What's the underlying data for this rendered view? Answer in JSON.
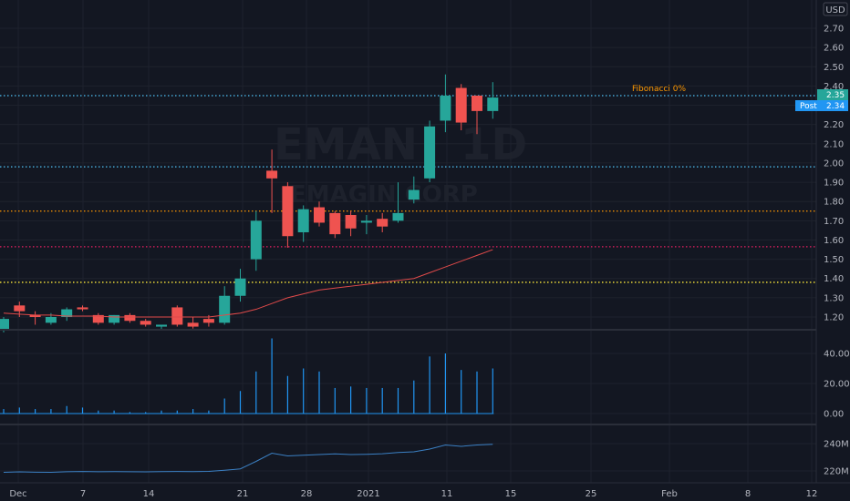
{
  "currency": "USD",
  "watermark": {
    "symbol": "EMAN",
    "interval": "1D",
    "name": "EMAGIN CORP"
  },
  "colors": {
    "up": "#26a69a",
    "down": "#ef5350",
    "volume": "#2196f3",
    "ma": "#e04a4a",
    "obv": "#3b80c4",
    "fib0": "#4fc3f7",
    "fib_a": "#4fc3f7",
    "fib_b": "#ff9800",
    "fib_c": "#e91e63",
    "fib_d": "#ffeb3b",
    "price_tag": "#26a69a",
    "post_tag": "#2196f3"
  },
  "price_label": "2.35",
  "post_label": {
    "tag": "Post",
    "value": "2.34"
  },
  "fib_label": "Fibonacci 0%",
  "chart_data": {
    "type": "candlestick",
    "x_axis": {
      "ticks": [
        "Dec",
        "7",
        "14",
        "21",
        "28",
        "2021",
        "11",
        "15",
        "25",
        "Feb",
        "8",
        "12"
      ]
    },
    "price_axis": {
      "ticks": [
        "1.20",
        "1.30",
        "1.40",
        "1.50",
        "1.60",
        "1.70",
        "1.80",
        "1.90",
        "2.00",
        "2.10",
        "2.20",
        "2.30",
        "2.40",
        "2.50",
        "2.60",
        "2.70"
      ],
      "range": [
        1.09,
        2.79
      ]
    },
    "volume_axis": {
      "ticks": [
        "0.00",
        "20.00",
        "40.00"
      ]
    },
    "obv_axis": {
      "ticks": [
        "220M",
        "240M"
      ]
    },
    "fib_levels": [
      2.35,
      1.98,
      1.75,
      1.565,
      1.38
    ],
    "candles": [
      {
        "o": 1.13,
        "h": 1.2,
        "l": 1.12,
        "c": 1.19
      },
      {
        "o": 1.26,
        "h": 1.28,
        "l": 1.2,
        "c": 1.23
      },
      {
        "o": 1.21,
        "h": 1.23,
        "l": 1.16,
        "c": 1.2
      },
      {
        "o": 1.17,
        "h": 1.22,
        "l": 1.16,
        "c": 1.2
      },
      {
        "o": 1.2,
        "h": 1.25,
        "l": 1.18,
        "c": 1.24
      },
      {
        "o": 1.25,
        "h": 1.26,
        "l": 1.23,
        "c": 1.24
      },
      {
        "o": 1.21,
        "h": 1.22,
        "l": 1.16,
        "c": 1.17
      },
      {
        "o": 1.17,
        "h": 1.21,
        "l": 1.16,
        "c": 1.21
      },
      {
        "o": 1.21,
        "h": 1.22,
        "l": 1.17,
        "c": 1.18
      },
      {
        "o": 1.18,
        "h": 1.19,
        "l": 1.15,
        "c": 1.16
      },
      {
        "o": 1.15,
        "h": 1.16,
        "l": 1.13,
        "c": 1.16
      },
      {
        "o": 1.25,
        "h": 1.26,
        "l": 1.15,
        "c": 1.16
      },
      {
        "o": 1.17,
        "h": 1.2,
        "l": 1.14,
        "c": 1.15
      },
      {
        "o": 1.19,
        "h": 1.21,
        "l": 1.15,
        "c": 1.17
      },
      {
        "o": 1.17,
        "h": 1.36,
        "l": 1.16,
        "c": 1.31
      },
      {
        "o": 1.31,
        "h": 1.45,
        "l": 1.28,
        "c": 1.4
      },
      {
        "o": 1.5,
        "h": 1.75,
        "l": 1.44,
        "c": 1.7
      },
      {
        "o": 1.96,
        "h": 2.07,
        "l": 1.74,
        "c": 1.92
      },
      {
        "o": 1.88,
        "h": 1.9,
        "l": 1.56,
        "c": 1.62
      },
      {
        "o": 1.64,
        "h": 1.78,
        "l": 1.59,
        "c": 1.76
      },
      {
        "o": 1.77,
        "h": 1.8,
        "l": 1.67,
        "c": 1.69
      },
      {
        "o": 1.74,
        "h": 1.75,
        "l": 1.61,
        "c": 1.63
      },
      {
        "o": 1.73,
        "h": 1.75,
        "l": 1.62,
        "c": 1.66
      },
      {
        "o": 1.69,
        "h": 1.73,
        "l": 1.63,
        "c": 1.7
      },
      {
        "o": 1.71,
        "h": 1.74,
        "l": 1.64,
        "c": 1.67
      },
      {
        "o": 1.7,
        "h": 1.9,
        "l": 1.69,
        "c": 1.74
      },
      {
        "o": 1.81,
        "h": 1.93,
        "l": 1.79,
        "c": 1.86
      },
      {
        "o": 1.92,
        "h": 2.22,
        "l": 1.9,
        "c": 2.19
      },
      {
        "o": 2.22,
        "h": 2.46,
        "l": 2.16,
        "c": 2.35
      },
      {
        "o": 2.39,
        "h": 2.41,
        "l": 2.17,
        "c": 2.21
      },
      {
        "o": 2.35,
        "h": 2.35,
        "l": 2.15,
        "c": 2.27
      },
      {
        "o": 2.27,
        "h": 2.42,
        "l": 2.23,
        "c": 2.34
      }
    ],
    "ma": [
      1.22,
      1.215,
      1.21,
      1.21,
      1.205,
      1.205,
      1.205,
      1.2,
      1.2,
      1.2,
      1.2,
      1.2,
      1.2,
      1.2,
      1.21,
      1.22,
      1.24,
      1.27,
      1.3,
      1.32,
      1.34,
      1.35,
      1.36,
      1.37,
      1.38,
      1.39,
      1.4,
      1.43,
      1.46,
      1.49,
      1.52,
      1.55
    ],
    "volume": [
      3,
      4,
      3,
      3,
      5,
      4,
      2,
      2,
      1,
      1,
      2,
      2,
      3,
      2,
      10,
      15,
      28,
      50,
      25,
      30,
      28,
      17,
      18,
      17,
      17,
      17,
      22,
      38,
      40,
      29,
      28,
      30
    ],
    "obv": [
      219,
      219.3,
      219.1,
      219.0,
      219.4,
      219.6,
      219.4,
      219.5,
      219.4,
      219.3,
      219.5,
      219.6,
      219.5,
      219.7,
      220.5,
      221.5,
      227,
      233,
      231,
      231.5,
      232,
      232.5,
      232,
      232.2,
      232.6,
      233.5,
      234,
      236,
      239,
      238,
      239,
      239.5
    ]
  }
}
